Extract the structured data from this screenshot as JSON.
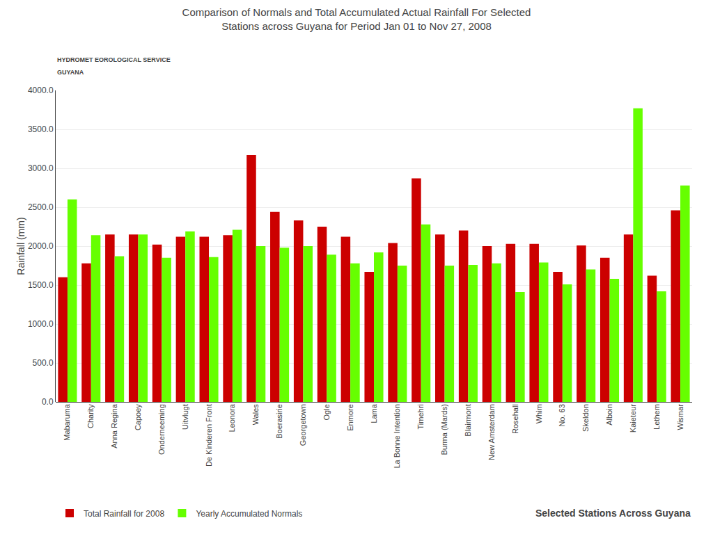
{
  "chart_data": {
    "type": "bar",
    "title": "Comparison of Normals and Total Accumulated Actual Rainfall For Selected\nStations across Guyana for Period Jan 01 to Nov 27, 2008",
    "ylabel": "Rainfall (mm)",
    "xlabel": "Selected Stations Across Guyana",
    "annotations": [
      "HYDROMET EOROLOGICAL SERVICE",
      "GUYANA"
    ],
    "categories": [
      "Mabaruma",
      "Charity",
      "Anna Regina",
      "Capoey",
      "Onderneeming",
      "Uitvlugt",
      "De Kinderen Front",
      "Leonora",
      "Wales",
      "Boerasirie",
      "Georgetown",
      "Ogle",
      "Enmore",
      "Lama",
      "La Bonne Intention",
      "Timehri",
      "Burma (Mards)",
      "Blairmont",
      "New Amsterdam",
      "Rosehall",
      "Whim",
      "No. 63",
      "Skeldon",
      "Alboin",
      "Kaieteur",
      "Lethem",
      "Wismar"
    ],
    "series": [
      {
        "name": "Total Rainfall for 2008",
        "color": "#CC0000",
        "values": [
          1600,
          1780,
          2150,
          2150,
          2020,
          2120,
          2120,
          2140,
          3170,
          2440,
          2330,
          2250,
          2120,
          1670,
          2040,
          2870,
          2150,
          2200,
          2000,
          2030,
          2030,
          1670,
          2010,
          1850,
          2150,
          1620,
          2460
        ]
      },
      {
        "name": "Yearly Accumulated Normals",
        "color": "#66FF00",
        "values": [
          2600,
          2140,
          1870,
          2150,
          1850,
          2190,
          1860,
          2210,
          2000,
          1980,
          2000,
          1890,
          1780,
          1920,
          1750,
          2280,
          1750,
          1760,
          1780,
          1410,
          1790,
          1510,
          1700,
          1580,
          3770,
          1420,
          2780
        ]
      }
    ],
    "ylim": [
      0,
      4000
    ],
    "yticks": [
      {
        "value": 0,
        "label": "0.0"
      },
      {
        "value": 500,
        "label": "500.0"
      },
      {
        "value": 1000,
        "label": "1000.0"
      },
      {
        "value": 1500,
        "label": "1500.0"
      },
      {
        "value": 2000,
        "label": "2000.0"
      },
      {
        "value": 2500,
        "label": "2500.0"
      },
      {
        "value": 3000,
        "label": "3000.0"
      },
      {
        "value": 3500,
        "label": "3500.0"
      },
      {
        "value": 4000,
        "label": "4000.0"
      }
    ],
    "grid": true,
    "legend": "bottom"
  }
}
